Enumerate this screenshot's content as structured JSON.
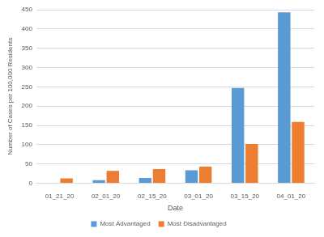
{
  "chart_data": {
    "type": "bar",
    "x_label": "Date",
    "y_label": "Number of Cases per 100,000 Residents",
    "categories": [
      "01_21_20",
      "02_01_20",
      "02_15_20",
      "03_01_20",
      "03_15_20",
      "04_01_20"
    ],
    "series": [
      {
        "name": "Most Advantaged",
        "color": "#5b9bd5",
        "values": [
          1,
          8,
          14,
          34,
          247,
          443
        ]
      },
      {
        "name": "Most Disadvantaged",
        "color": "#ed7d31",
        "values": [
          13,
          32,
          37,
          43,
          102,
          159
        ]
      }
    ],
    "ylim": [
      0,
      450
    ],
    "yticks": [
      0,
      50,
      100,
      150,
      200,
      250,
      300,
      350,
      400,
      450
    ],
    "grid": true,
    "legend": "bottom"
  }
}
